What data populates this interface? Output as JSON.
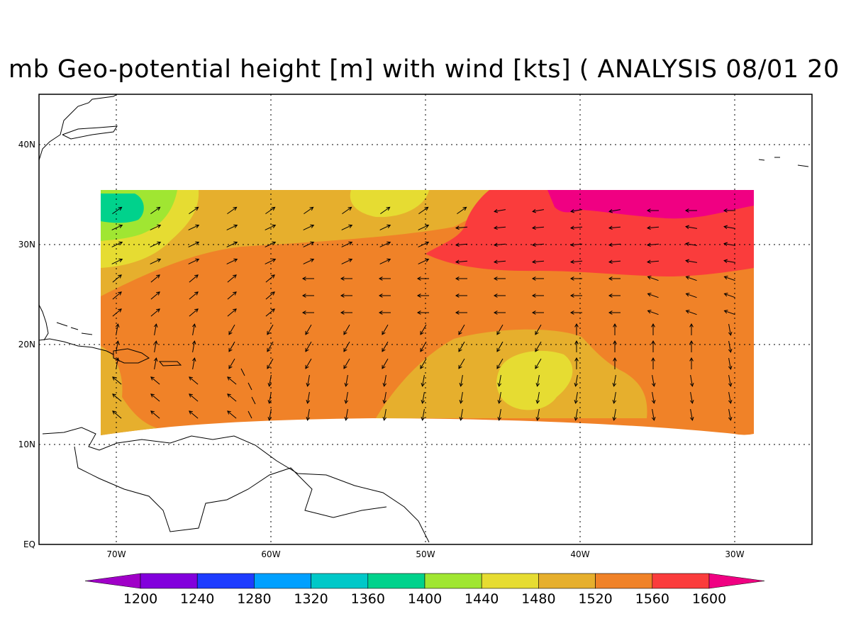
{
  "title": "mb Geo-potential height [m] with wind [kts] ( ANALYSIS 08/01 20",
  "axes": {
    "lat_labels": [
      "EQ",
      "10N",
      "20N",
      "30N",
      "40N"
    ],
    "lon_labels": [
      "70W",
      "60W",
      "50W",
      "40W",
      "30W"
    ]
  },
  "colorbar": {
    "labels": [
      "1200",
      "1240",
      "1280",
      "1320",
      "1360",
      "1400",
      "1440",
      "1480",
      "1520",
      "1560",
      "1600"
    ],
    "colors": [
      "#a000c8",
      "#8200dc",
      "#1e3cff",
      "#00a0ff",
      "#00c8c8",
      "#00d28c",
      "#a0e632",
      "#e6dc32",
      "#e6af2d",
      "#f08228",
      "#fa3c3c",
      "#f00082"
    ]
  },
  "colors": {
    "level_1400_1440": "#a0e632",
    "level_1360_1400": "#00d28c",
    "level_1440_1480": "#e6dc32",
    "level_1480_1520": "#e6af2d",
    "level_1520_1560": "#f08228",
    "level_1560_1600": "#fa3c3c",
    "level_above_1600": "#f00082"
  }
}
